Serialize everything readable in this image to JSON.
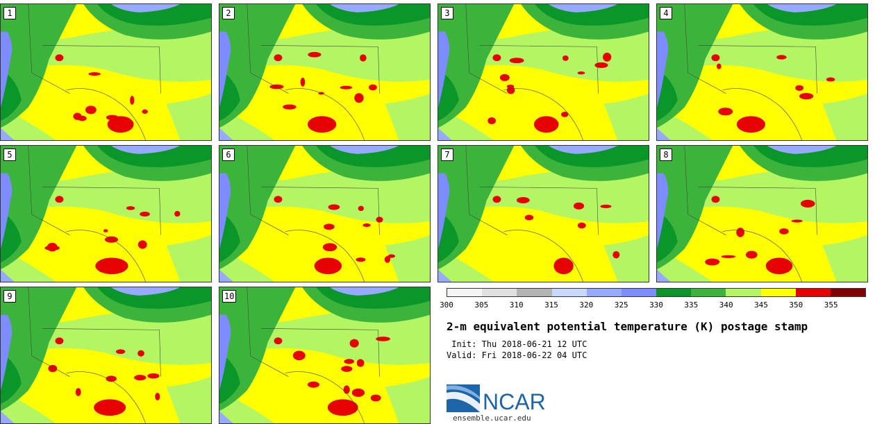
{
  "panels": [
    {
      "label": "1"
    },
    {
      "label": "2"
    },
    {
      "label": "3"
    },
    {
      "label": "4"
    },
    {
      "label": "5"
    },
    {
      "label": "6"
    },
    {
      "label": "7"
    },
    {
      "label": "8"
    },
    {
      "label": "9"
    },
    {
      "label": "10"
    }
  ],
  "colorbar": {
    "ticks": [
      "300",
      "305",
      "310",
      "315",
      "320",
      "325",
      "330",
      "335",
      "340",
      "345",
      "350",
      "355"
    ],
    "colors": [
      "#f4f4f4",
      "#e0e0e0",
      "#b4b4b4",
      "#c8d8ff",
      "#96aaff",
      "#7d8cff",
      "#0a9628",
      "#3cb43c",
      "#b4f564",
      "#ffff00",
      "#e60000",
      "#820000"
    ]
  },
  "title": "2-m equivalent potential temperature (K) postage stamp",
  "init": " Init: Thu 2018-06-21 12 UTC",
  "valid": "Valid: Fri 2018-06-22 04 UTC",
  "logo": {
    "text": "NCAR",
    "url": "ensemble.ucar.edu"
  }
}
